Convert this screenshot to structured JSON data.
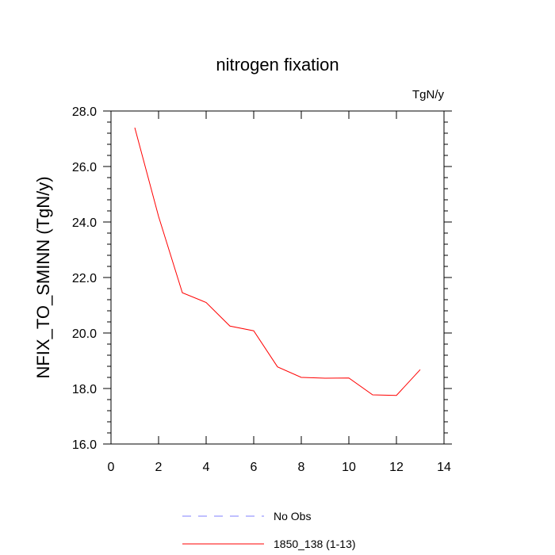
{
  "chart_data": {
    "type": "line",
    "title": "nitrogen fixation",
    "units_label": "TgN/y",
    "xlabel": "",
    "ylabel": "NFIX_TO_SMINN  (TgN/y)",
    "xlim": [
      0,
      14
    ],
    "ylim": [
      16.0,
      28.0
    ],
    "x_ticks": [
      0,
      2,
      4,
      6,
      8,
      10,
      12,
      14
    ],
    "x_tick_labels": [
      "0",
      "2",
      "4",
      "6",
      "8",
      "10",
      "12",
      "14"
    ],
    "y_ticks": [
      16.0,
      18.0,
      20.0,
      22.0,
      24.0,
      26.0,
      28.0
    ],
    "y_tick_labels": [
      "16.0",
      "18.0",
      "20.0",
      "22.0",
      "24.0",
      "26.0",
      "28.0"
    ],
    "grid": false,
    "legend_position": "bottom",
    "series": [
      {
        "name": "1850_138 (1-13)",
        "color": "#ff0000",
        "style": "solid",
        "x": [
          1,
          2,
          3,
          4,
          5,
          6,
          7,
          8,
          9,
          10,
          11,
          12,
          13
        ],
        "y": [
          27.4,
          24.2,
          21.45,
          21.1,
          20.25,
          20.08,
          18.78,
          18.4,
          18.37,
          18.38,
          17.77,
          17.75,
          18.68
        ]
      }
    ],
    "legend": [
      {
        "label": "No Obs",
        "color": "#8080ff",
        "style": "dashed"
      },
      {
        "label": "1850_138 (1-13)",
        "color": "#ff0000",
        "style": "solid"
      }
    ]
  }
}
